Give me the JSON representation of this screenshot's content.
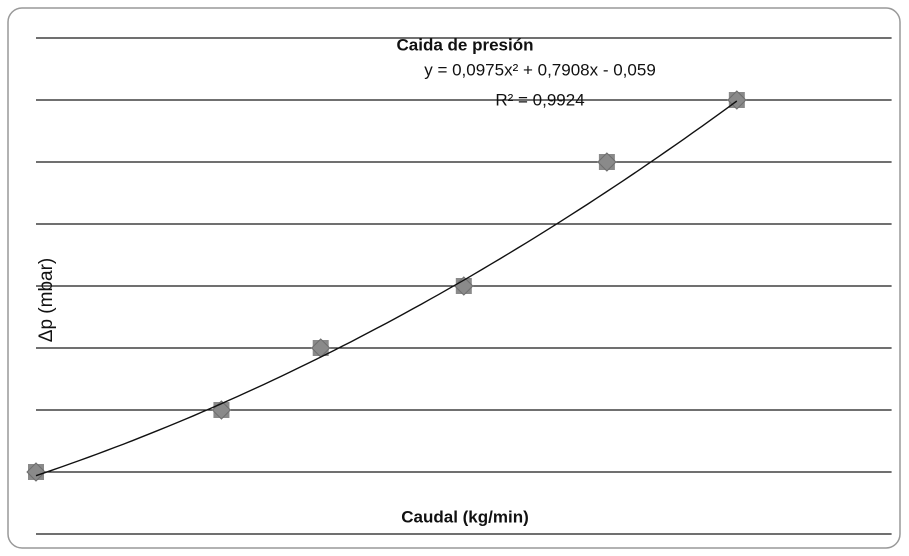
{
  "chart_data": {
    "type": "scatter",
    "title": "Caida de presión",
    "x_label": "Caudal (kg/min)",
    "y_label": "Δp (mbar)",
    "x": [
      0,
      1.27,
      1.95,
      2.93,
      3.91,
      4.8
    ],
    "series": [
      {
        "color": "#8a8a8a",
        "values": [
          0,
          1,
          2,
          3,
          5,
          6
        ]
      }
    ],
    "xlim": [
      0,
      5.86
    ],
    "ylim": [
      -1,
      7
    ],
    "yticks": [
      -1,
      0,
      1,
      2,
      3,
      4,
      5,
      6,
      7
    ],
    "grid": true,
    "trendline": {
      "equation": "y = 0,0975x² + 0,7908x - 0,059",
      "r2_label": "R² = 0,9924",
      "coefficients": [
        0.0975,
        0.7908,
        -0.059
      ],
      "color": "#111111"
    }
  }
}
